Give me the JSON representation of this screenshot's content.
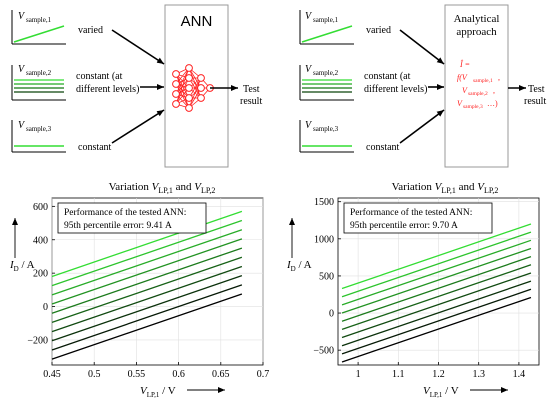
{
  "colors": {
    "line_light": "#33dd33",
    "line_dark": "#000000",
    "arrow": "#000000",
    "box": "#999999",
    "network": "#ff2222"
  },
  "left_panel": {
    "signals": [
      {
        "label": "V",
        "sub": "sample,1",
        "desc": "varied"
      },
      {
        "label": "V",
        "sub": "sample,2",
        "desc_line1": "constant (at",
        "desc_line2": "different levels)"
      },
      {
        "label": "V",
        "sub": "sample,3",
        "desc": "constant"
      }
    ],
    "box_title": "ANN",
    "output_line1": "Test",
    "output_line2": "result"
  },
  "right_panel": {
    "signals": [
      {
        "label": "V",
        "sub": "sample,1",
        "desc": "varied"
      },
      {
        "label": "V",
        "sub": "sample,2",
        "desc_line1": "constant (at",
        "desc_line2": "different levels)"
      },
      {
        "label": "V",
        "sub": "sample,3",
        "desc": "constant"
      }
    ],
    "box_title_line1": "Analytical",
    "box_title_line2": "approach",
    "formula": {
      "line1": "Î =",
      "line2_f": "f(V",
      "line2_sub": "sample,1",
      "line2_end": ",",
      "line3_v": "V",
      "line3_sub": "sample,2",
      "line3_end": ",",
      "line4_v": "V",
      "line4_sub": "sample,3",
      "line4_end": " …)"
    },
    "output_line1": "Test",
    "output_line2": "result"
  },
  "chart_data": [
    {
      "type": "line",
      "title": "Variation V_LP,1 and V_LP,2",
      "title_parts": {
        "prefix": "Variation ",
        "v": "V",
        "sub1": "LP,1",
        "and": " and ",
        "sub2": "LP,2"
      },
      "xlabel": "V_LP,1 / V",
      "ylabel": "I_D / A",
      "xlim": [
        0.45,
        0.7
      ],
      "ylim": [
        -350,
        650
      ],
      "xticks": [
        0.45,
        0.5,
        0.55,
        0.6,
        0.65,
        0.7
      ],
      "xtick_labels": [
        "0.45",
        "0.5",
        "0.55",
        "0.6",
        "0.65",
        "0.7"
      ],
      "yticks": [
        -200,
        0,
        200,
        400,
        600
      ],
      "ytick_labels": [
        "−200",
        "0",
        "200",
        "400",
        "600"
      ],
      "x_start": 0.45,
      "x_end": 0.675,
      "series": [
        {
          "values": [
            180,
            570
          ]
        },
        {
          "values": [
            125,
            515
          ]
        },
        {
          "values": [
            70,
            460
          ]
        },
        {
          "values": [
            15,
            405
          ]
        },
        {
          "values": [
            -40,
            350
          ]
        },
        {
          "values": [
            -95,
            295
          ]
        },
        {
          "values": [
            -150,
            240
          ]
        },
        {
          "values": [
            -205,
            185
          ]
        },
        {
          "values": [
            -260,
            130
          ]
        },
        {
          "values": [
            -315,
            75
          ]
        }
      ],
      "annotation_line1": "Performance of the tested ANN:",
      "annotation_line2": "95th percentile error: 9.41 A"
    },
    {
      "type": "line",
      "title": "Variation V_LP,1 and V_LP,2",
      "title_parts": {
        "prefix": "Variation ",
        "v": "V",
        "sub1": "LP,1",
        "and": " and ",
        "sub2": "LP,2"
      },
      "xlabel": "V_LP,1 / V",
      "ylabel": "I_D / A",
      "xlim": [
        0.95,
        1.45
      ],
      "ylim": [
        -700,
        1550
      ],
      "xticks": [
        1.0,
        1.1,
        1.2,
        1.3,
        1.4
      ],
      "xtick_labels": [
        "1",
        "1.1",
        "1.2",
        "1.3",
        "1.4"
      ],
      "yticks": [
        -500,
        0,
        500,
        1000,
        1500
      ],
      "ytick_labels": [
        "−500",
        "0",
        "500",
        "1000",
        "1500"
      ],
      "x_start": 0.96,
      "x_end": 1.43,
      "series": [
        {
          "values": [
            330,
            1200
          ]
        },
        {
          "values": [
            220,
            1090
          ]
        },
        {
          "values": [
            110,
            980
          ]
        },
        {
          "values": [
            0,
            870
          ]
        },
        {
          "values": [
            -110,
            760
          ]
        },
        {
          "values": [
            -220,
            650
          ]
        },
        {
          "values": [
            -330,
            540
          ]
        },
        {
          "values": [
            -440,
            430
          ]
        },
        {
          "values": [
            -550,
            320
          ]
        },
        {
          "values": [
            -660,
            210
          ]
        }
      ],
      "annotation_line1": "Performance of the tested ANN:",
      "annotation_line2": "95th percentile error: 9.70 A"
    }
  ]
}
